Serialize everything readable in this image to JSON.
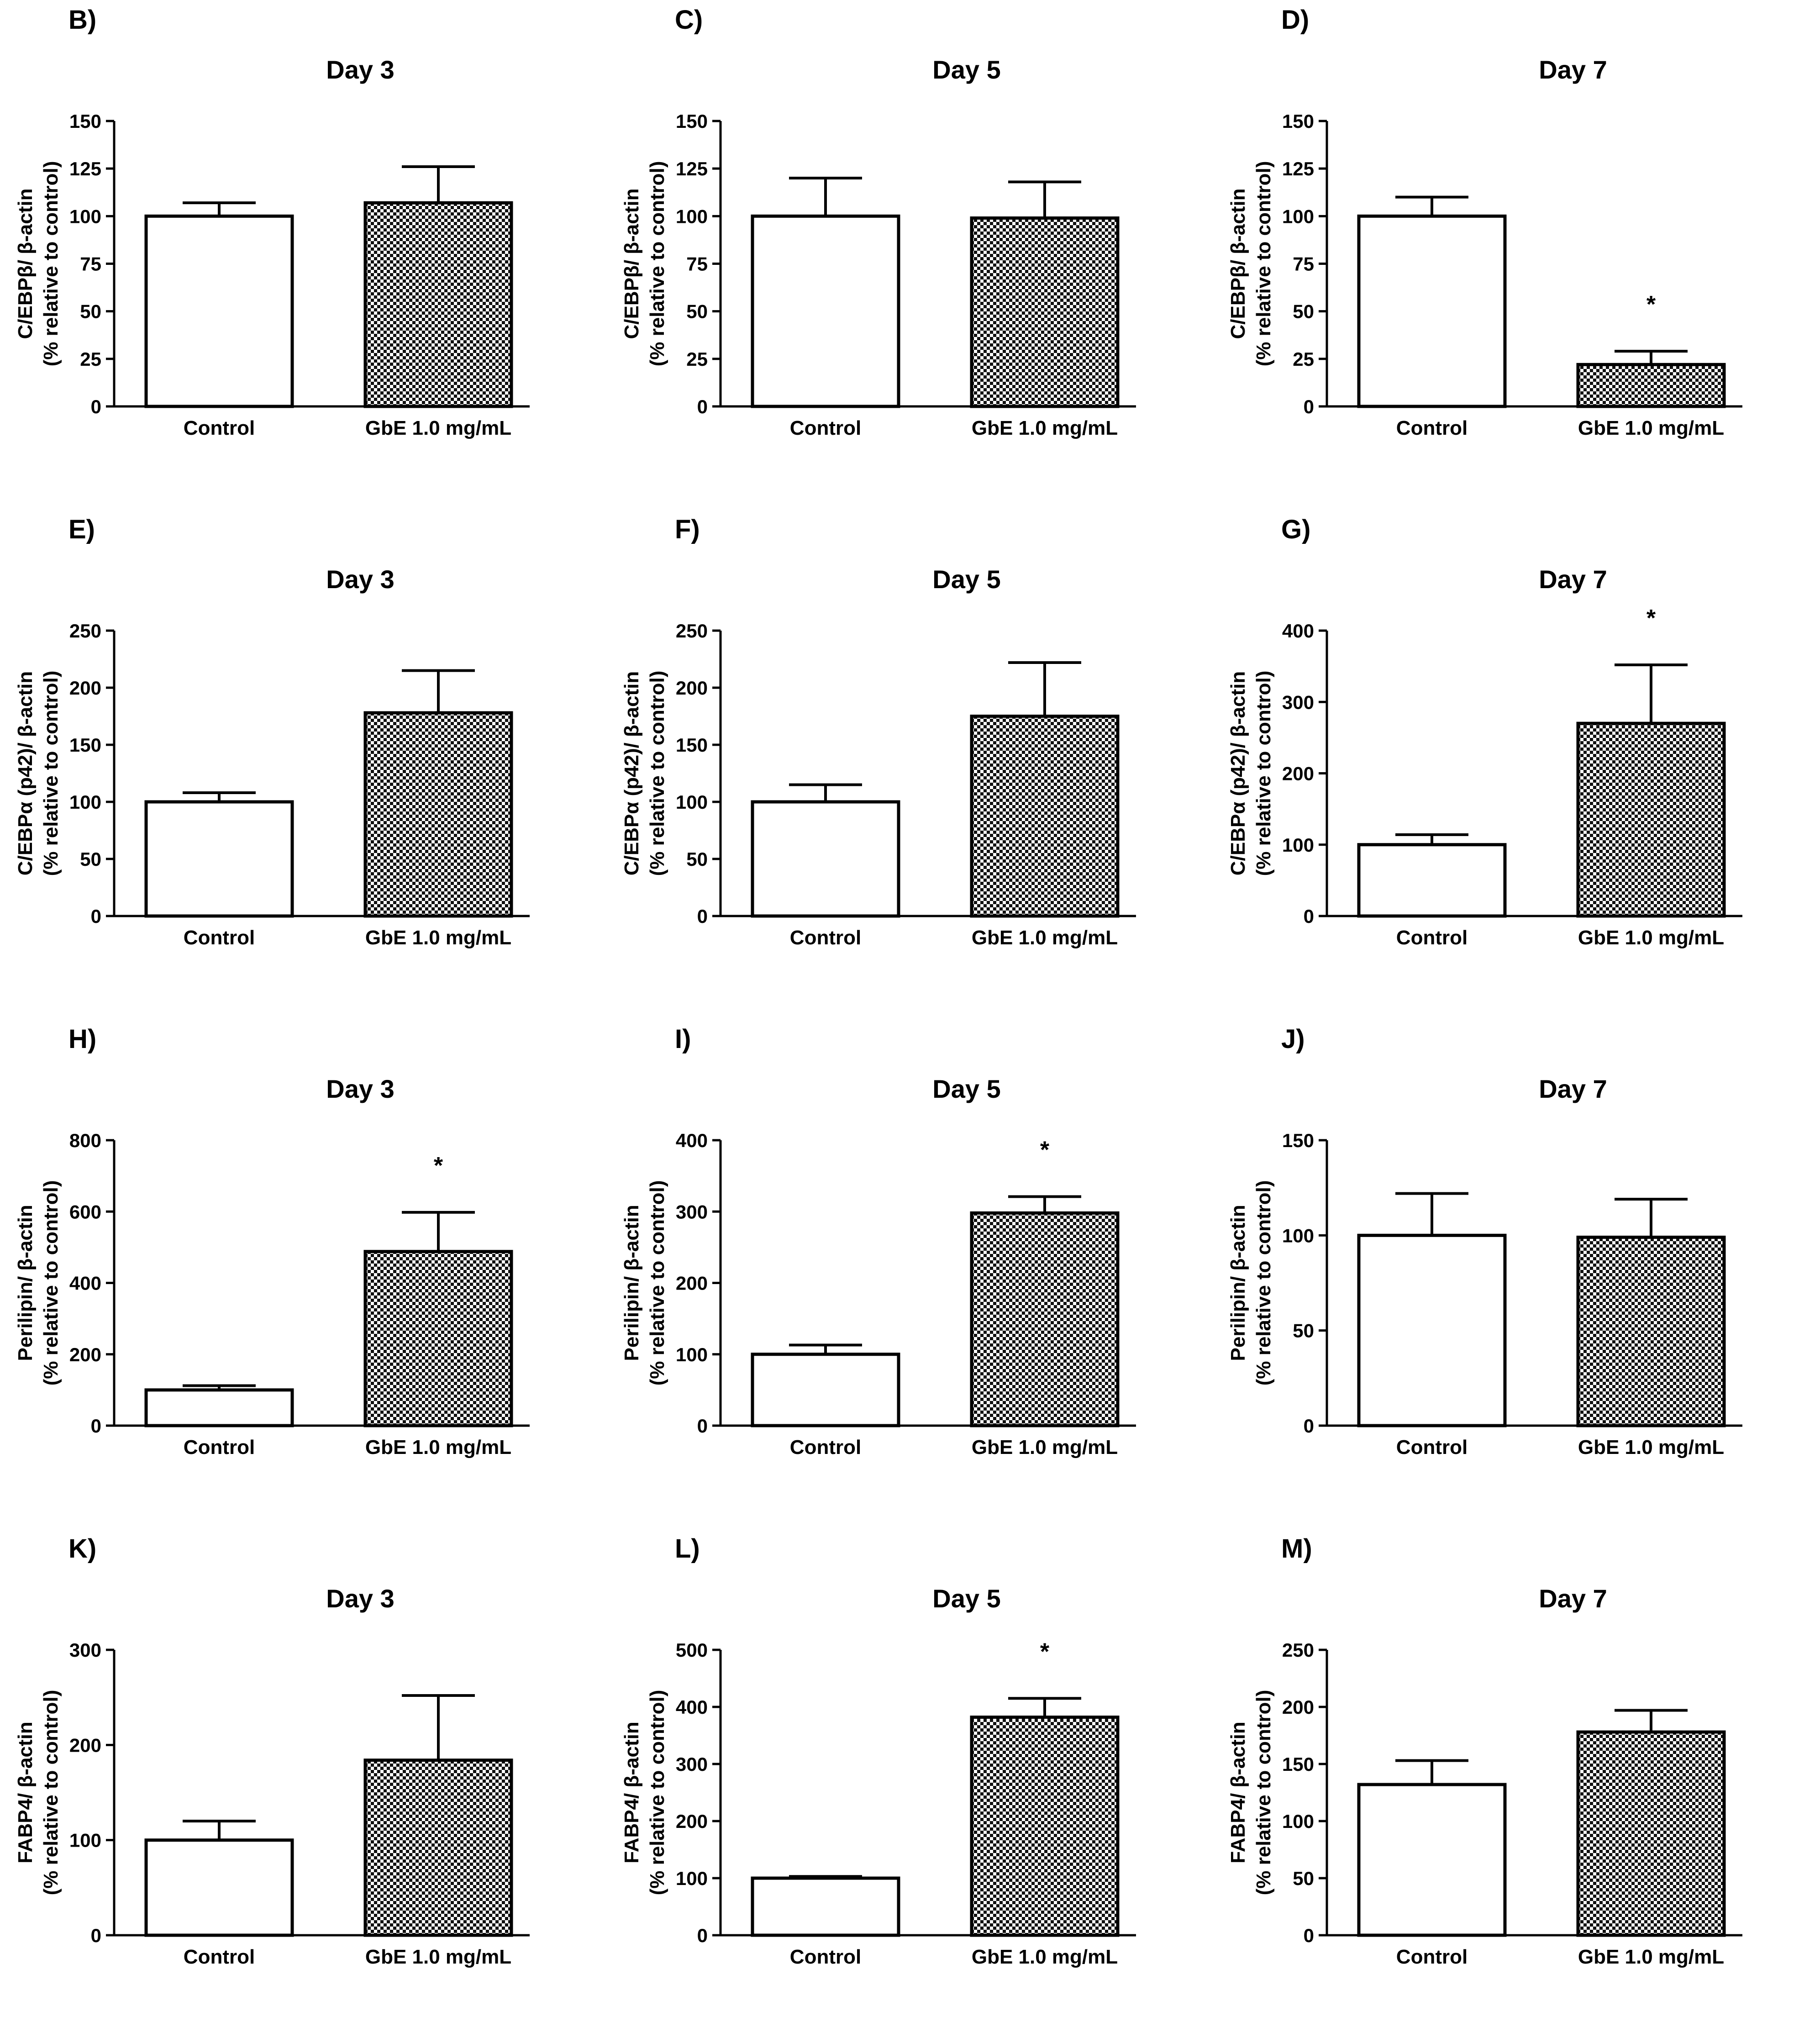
{
  "figure": {
    "ylabel_c_ebpb": [
      "C/EBPβ/ β-actin",
      "(% relative to control)"
    ],
    "ylabel_c_ebpa": [
      "C/EBPα (p42)/ β-actin",
      "(% relative to control)"
    ],
    "ylabel_perilipin": [
      "Perilipin/ β-actin",
      "(% relative to control)"
    ],
    "ylabel_fabp4": [
      "FABP4/ β-actin",
      "(% relative to control)"
    ]
  },
  "chart_data": [
    {
      "panel": "B)",
      "type": "bar",
      "title": "Day 3",
      "categories": [
        "Control",
        "GbE 1.0 mg/mL"
      ],
      "values": [
        100,
        107
      ],
      "errors": [
        7,
        19
      ],
      "significance": [
        "",
        ""
      ],
      "ylim": [
        0,
        150
      ],
      "yticks": [
        0,
        25,
        50,
        75,
        100,
        125,
        150
      ],
      "ylabel": [
        "C/EBPβ/ β-actin",
        "(% relative to control)"
      ]
    },
    {
      "panel": "C)",
      "type": "bar",
      "title": "Day 5",
      "categories": [
        "Control",
        "GbE 1.0 mg/mL"
      ],
      "values": [
        100,
        99
      ],
      "errors": [
        20,
        19
      ],
      "significance": [
        "",
        ""
      ],
      "ylim": [
        0,
        150
      ],
      "yticks": [
        0,
        25,
        50,
        75,
        100,
        125,
        150
      ],
      "ylabel": [
        "C/EBPβ/ β-actin",
        "(% relative to control)"
      ]
    },
    {
      "panel": "D)",
      "type": "bar",
      "title": "Day 7",
      "categories": [
        "Control",
        "GbE 1.0 mg/mL"
      ],
      "values": [
        100,
        22
      ],
      "errors": [
        10,
        7
      ],
      "significance": [
        "",
        "*"
      ],
      "ylim": [
        0,
        150
      ],
      "yticks": [
        0,
        25,
        50,
        75,
        100,
        125,
        150
      ],
      "ylabel": [
        "C/EBPβ/ β-actin",
        "(% relative to control)"
      ]
    },
    {
      "panel": "E)",
      "type": "bar",
      "title": "Day 3",
      "categories": [
        "Control",
        "GbE 1.0 mg/mL"
      ],
      "values": [
        100,
        178
      ],
      "errors": [
        8,
        37
      ],
      "significance": [
        "",
        ""
      ],
      "ylim": [
        0,
        250
      ],
      "yticks": [
        0,
        50,
        100,
        150,
        200,
        250
      ],
      "ylabel": [
        "C/EBPα (p42)/ β-actin",
        "(% relative to control)"
      ]
    },
    {
      "panel": "F)",
      "type": "bar",
      "title": "Day 5",
      "categories": [
        "Control",
        "GbE 1.0 mg/mL"
      ],
      "values": [
        100,
        175
      ],
      "errors": [
        15,
        47
      ],
      "significance": [
        "",
        ""
      ],
      "ylim": [
        0,
        250
      ],
      "yticks": [
        0,
        50,
        100,
        150,
        200,
        250
      ],
      "ylabel": [
        "C/EBPα (p42)/ β-actin",
        "(% relative to control)"
      ]
    },
    {
      "panel": "G)",
      "type": "bar",
      "title": "Day 7",
      "categories": [
        "Control",
        "GbE 1.0 mg/mL"
      ],
      "values": [
        100,
        270
      ],
      "errors": [
        14,
        82
      ],
      "significance": [
        "",
        "*"
      ],
      "ylim": [
        0,
        400
      ],
      "yticks": [
        0,
        100,
        200,
        300,
        400
      ],
      "ylabel": [
        "C/EBPα (p42)/ β-actin",
        "(% relative to control)"
      ]
    },
    {
      "panel": "H)",
      "type": "bar",
      "title": "Day 3",
      "categories": [
        "Control",
        "GbE 1.0 mg/mL"
      ],
      "values": [
        100,
        488
      ],
      "errors": [
        12,
        110
      ],
      "significance": [
        "",
        "*"
      ],
      "ylim": [
        0,
        800
      ],
      "yticks": [
        0,
        200,
        400,
        600,
        800
      ],
      "ylabel": [
        "Perilipin/ β-actin",
        "(% relative to control)"
      ]
    },
    {
      "panel": "I)",
      "type": "bar",
      "title": "Day 5",
      "categories": [
        "Control",
        "GbE 1.0 mg/mL"
      ],
      "values": [
        100,
        298
      ],
      "errors": [
        13,
        23
      ],
      "significance": [
        "",
        "*"
      ],
      "ylim": [
        0,
        400
      ],
      "yticks": [
        0,
        100,
        200,
        300,
        400
      ],
      "ylabel": [
        "Perilipin/ β-actin",
        "(% relative to control)"
      ]
    },
    {
      "panel": "J)",
      "type": "bar",
      "title": "Day 7",
      "categories": [
        "Control",
        "GbE 1.0 mg/mL"
      ],
      "values": [
        100,
        99
      ],
      "errors": [
        22,
        20
      ],
      "significance": [
        "",
        ""
      ],
      "ylim": [
        0,
        150
      ],
      "yticks": [
        0,
        50,
        100,
        150
      ],
      "ylabel": [
        "Perilipin/ β-actin",
        "(% relative to control)"
      ]
    },
    {
      "panel": "K)",
      "type": "bar",
      "title": "Day 3",
      "categories": [
        "Control",
        "GbE 1.0 mg/mL"
      ],
      "values": [
        100,
        184
      ],
      "errors": [
        20,
        68
      ],
      "significance": [
        "",
        ""
      ],
      "ylim": [
        0,
        300
      ],
      "yticks": [
        0,
        100,
        200,
        300
      ],
      "ylabel": [
        "FABP4/ β-actin",
        "(% relative to control)"
      ]
    },
    {
      "panel": "L)",
      "type": "bar",
      "title": "Day 5",
      "categories": [
        "Control",
        "GbE 1.0 mg/mL"
      ],
      "values": [
        100,
        382
      ],
      "errors": [
        3,
        33
      ],
      "significance": [
        "",
        "*"
      ],
      "ylim": [
        0,
        500
      ],
      "yticks": [
        0,
        100,
        200,
        300,
        400,
        500
      ],
      "ylabel": [
        "FABP4/ β-actin",
        "(% relative to control)"
      ]
    },
    {
      "panel": "M)",
      "type": "bar",
      "title": "Day 7",
      "categories": [
        "Control",
        "GbE 1.0 mg/mL"
      ],
      "values": [
        132,
        178
      ],
      "errors": [
        21,
        19
      ],
      "significance": [
        "",
        ""
      ],
      "ylim": [
        0,
        250
      ],
      "yticks": [
        0,
        50,
        100,
        150,
        200,
        250
      ],
      "ylabel": [
        "FABP4/ β-actin",
        "(% relative to control)"
      ]
    }
  ]
}
